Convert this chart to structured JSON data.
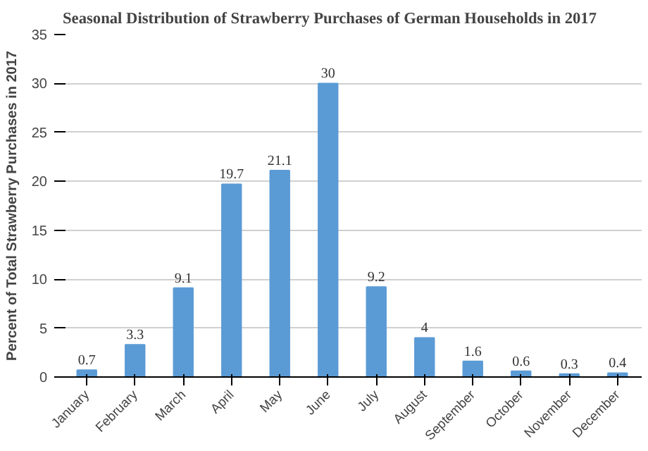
{
  "chart_data": {
    "type": "bar",
    "title": "Seasonal Distribution of Strawberry Purchases of German Households in 2017",
    "ylabel": "Percent of Total Strawberry Purchases in 2017",
    "categories": [
      "January",
      "February",
      "March",
      "April",
      "May",
      "June",
      "July",
      "August",
      "September",
      "October",
      "November",
      "December"
    ],
    "values": [
      0.7,
      3.3,
      9.1,
      19.7,
      21.1,
      30,
      9.2,
      4,
      1.6,
      0.6,
      0.3,
      0.4
    ],
    "color": "#5b9bd5",
    "ylim": [
      0,
      35
    ],
    "yticks": [
      0,
      5,
      10,
      15,
      20,
      25,
      30,
      35
    ],
    "grid": "y",
    "data_labels": true
  }
}
